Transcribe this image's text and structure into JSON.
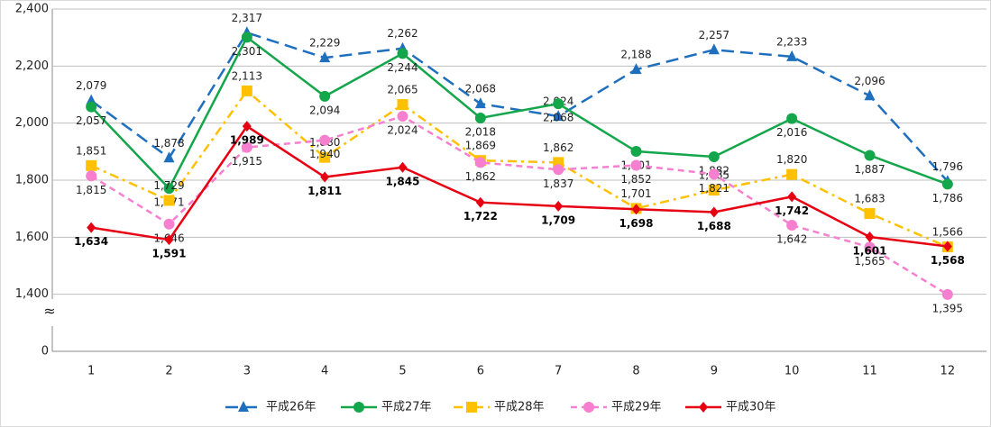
{
  "chart_data": {
    "type": "line",
    "categories": [
      "1",
      "2",
      "3",
      "4",
      "5",
      "6",
      "7",
      "8",
      "9",
      "10",
      "11",
      "12"
    ],
    "ylim": [
      0,
      2400
    ],
    "axis_break": [
      0,
      1400
    ],
    "yticks": [
      0,
      {
        "value": 1400,
        "label": "1,400"
      },
      {
        "value": 1600,
        "label": "1,600"
      },
      {
        "value": 1800,
        "label": "1,800"
      },
      {
        "value": 2000,
        "label": "2,000"
      },
      {
        "value": 2200,
        "label": "2,200"
      },
      {
        "value": 2400,
        "label": "2,400"
      }
    ],
    "grid": true,
    "legend": "bottom",
    "series": [
      {
        "name": "平成26年",
        "color": "#1f6fbf",
        "line_style": "dashed",
        "marker": "triangle",
        "label_position": "above",
        "values": [
          2079,
          1878,
          2317,
          2229,
          2262,
          2068,
          2024,
          2188,
          2257,
          2233,
          2096,
          1796
        ],
        "value_labels": [
          "2,079",
          "1,878",
          "2,317",
          "2,229",
          "2,262",
          "2,068",
          "2,024",
          "2,188",
          "2,257",
          "2,233",
          "2,096",
          "1,796"
        ]
      },
      {
        "name": "平成27年",
        "color": "#14a64a",
        "line_style": "solid",
        "marker": "circle",
        "label_position": "below",
        "values": [
          2057,
          1771,
          2301,
          2094,
          2244,
          2018,
          2068,
          1901,
          1882,
          2016,
          1887,
          1786
        ],
        "value_labels": [
          "2,057",
          "1,771",
          "2,301",
          "2,094",
          "2,244",
          "2,018",
          "2,068",
          "1,901",
          "1,882",
          "2,016",
          "1,887",
          "1,786"
        ]
      },
      {
        "name": "平成28年",
        "color": "#ffc000",
        "line_style": "dashdot",
        "marker": "square",
        "label_position": "above",
        "values": [
          1851,
          1729,
          2113,
          1880,
          2065,
          1869,
          1862,
          1701,
          1765,
          1820,
          1683,
          1566
        ],
        "value_labels": [
          "1,851",
          "1,729",
          "2,113",
          "1,880",
          "2,065",
          "1,869",
          "1,862",
          "1,701",
          "1,765",
          "1,820",
          "1,683",
          "1,566"
        ]
      },
      {
        "name": "平成29年",
        "color": "#f77fcf",
        "line_style": "dotted",
        "marker": "circle",
        "label_position": "below",
        "values": [
          1815,
          1646,
          1915,
          1940,
          2024,
          1862,
          1837,
          1852,
          1821,
          1642,
          1565,
          1395
        ],
        "value_labels": [
          "1,815",
          "1,646",
          "1,915",
          "1,940",
          "2,024",
          "1,862",
          "1,837",
          "1,852",
          "1,821",
          "1,642",
          "1,565",
          "1,395"
        ]
      },
      {
        "name": "平成30年",
        "color": "#e60012",
        "line_style": "solid",
        "marker": "diamond",
        "label_position": "below",
        "label_bold": true,
        "values": [
          1634,
          1591,
          1989,
          1811,
          1845,
          1722,
          1709,
          1698,
          1688,
          1742,
          1601,
          1568
        ],
        "value_labels": [
          "1,634",
          "1,591",
          "1,989",
          "1,811",
          "1,845",
          "1,722",
          "1,709",
          "1,698",
          "1,688",
          "1,742",
          "1,601",
          "1,568"
        ]
      }
    ]
  }
}
